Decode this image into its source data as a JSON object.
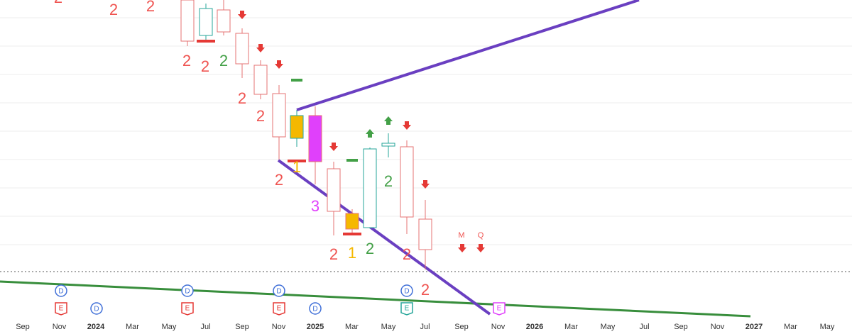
{
  "x_axis_labels": [
    "Sep",
    "Nov",
    "2024",
    "Mar",
    "May",
    "Jul",
    "Sep",
    "Nov",
    "2025",
    "Mar",
    "May",
    "Jul",
    "Sep",
    "Nov",
    "2026",
    "Mar",
    "May",
    "Jul",
    "Sep",
    "Nov",
    "2027",
    "Mar",
    "May"
  ],
  "annotations": [
    "2",
    "2",
    "2",
    "2",
    "2",
    "2",
    "2",
    "2",
    "2",
    "1",
    "3",
    "2",
    "1",
    "2",
    "2",
    "2",
    "2",
    "M",
    "Q"
  ],
  "dividend_markers": [
    "D",
    "D",
    "D",
    "D",
    "D",
    "D"
  ],
  "earnings_markers": [
    "E",
    "E",
    "E",
    "E",
    "E"
  ]
}
